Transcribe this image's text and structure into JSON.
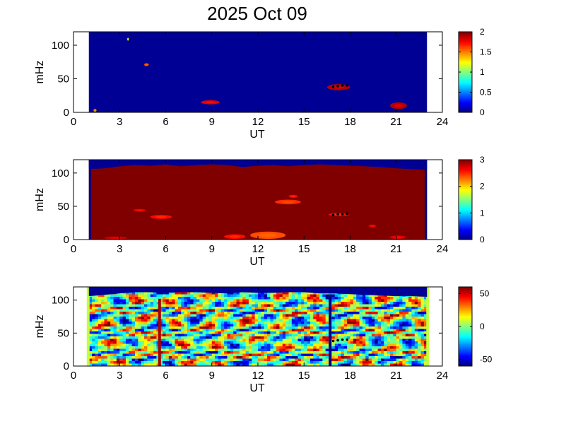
{
  "title": "2025 Oct 09",
  "colors": {
    "cmap": "jet",
    "background": "#ffffff",
    "axis": "#000000"
  },
  "chart_data": [
    {
      "type": "heatmap",
      "xlabel": "UT",
      "ylabel": "mHz",
      "xlim": [
        0,
        24
      ],
      "ylim": [
        0,
        120
      ],
      "xticks": [
        "0",
        "3",
        "6",
        "9",
        "12",
        "15",
        "18",
        "21",
        "24"
      ],
      "yticks": [
        "0",
        "50",
        "100"
      ],
      "data_extent_ut": [
        1,
        23
      ],
      "clim": [
        0,
        2
      ],
      "colorbar_ticks": [
        "0",
        "0.5",
        "1",
        "1.5",
        "2"
      ],
      "base_value": 0.04,
      "features": [
        {
          "ut": [
            8.3,
            9.5
          ],
          "mhz": [
            12,
            18
          ],
          "value": 1.8
        },
        {
          "ut": [
            4.6,
            4.9
          ],
          "mhz": [
            70,
            72
          ],
          "value": 1.6
        },
        {
          "ut": [
            16.5,
            18.0
          ],
          "mhz": [
            33,
            42
          ],
          "value": 1.9
        },
        {
          "ut": [
            20.6,
            21.7
          ],
          "mhz": [
            5,
            15
          ],
          "value": 1.9
        },
        {
          "ut": [
            1.3,
            1.5
          ],
          "mhz": [
            1,
            5
          ],
          "value": 1.5
        },
        {
          "ut": [
            3.5,
            3.6
          ],
          "mhz": [
            108,
            110
          ],
          "value": 1.2
        }
      ],
      "marker_points": [
        [
          16.9,
          38
        ],
        [
          17.2,
          39
        ],
        [
          17.5,
          40
        ],
        [
          17.8,
          40
        ]
      ]
    },
    {
      "type": "heatmap",
      "xlabel": "UT",
      "ylabel": "mHz",
      "xlim": [
        0,
        24
      ],
      "ylim": [
        0,
        120
      ],
      "xticks": [
        "0",
        "3",
        "6",
        "9",
        "12",
        "15",
        "18",
        "21",
        "24"
      ],
      "yticks": [
        "0",
        "50",
        "100"
      ],
      "data_extent_ut": [
        1,
        23
      ],
      "clim": [
        0,
        3
      ],
      "colorbar_ticks": [
        "0",
        "1",
        "2",
        "3"
      ],
      "base_value": 3,
      "top_edge_mhz": [
        106,
        107,
        110,
        112,
        111,
        113,
        110,
        112,
        113,
        112,
        109,
        111,
        112,
        110,
        112,
        113,
        112,
        111,
        110,
        109,
        107,
        106,
        105
      ],
      "features": [
        {
          "ut": [
            11.5,
            13.8
          ],
          "mhz": [
            1,
            12
          ],
          "value": 2.4
        },
        {
          "ut": [
            9.8,
            11.2
          ],
          "mhz": [
            1,
            8
          ],
          "value": 2.6
        },
        {
          "ut": [
            5.0,
            6.4
          ],
          "mhz": [
            31,
            37
          ],
          "value": 2.6
        },
        {
          "ut": [
            3.9,
            4.7
          ],
          "mhz": [
            42,
            46
          ],
          "value": 2.7
        },
        {
          "ut": [
            13.1,
            14.8
          ],
          "mhz": [
            53,
            60
          ],
          "value": 2.5
        },
        {
          "ut": [
            14.0,
            14.6
          ],
          "mhz": [
            63,
            67
          ],
          "value": 2.6
        },
        {
          "ut": [
            16.6,
            17.9
          ],
          "mhz": [
            35,
            40
          ],
          "value": 2.6
        },
        {
          "ut": [
            19.2,
            19.7
          ],
          "mhz": [
            19,
            22
          ],
          "value": 2.7
        },
        {
          "ut": [
            20.6,
            21.6
          ],
          "mhz": [
            1,
            6
          ],
          "value": 2.7
        },
        {
          "ut": [
            2.0,
            3.5
          ],
          "mhz": [
            1,
            4
          ],
          "value": 2.8
        }
      ],
      "marker_points": [
        [
          16.9,
          37
        ],
        [
          17.2,
          38
        ],
        [
          17.5,
          38
        ],
        [
          17.8,
          39
        ]
      ]
    },
    {
      "type": "heatmap",
      "xlabel": "UT",
      "ylabel": "mHz",
      "xlim": [
        0,
        24
      ],
      "ylim": [
        0,
        120
      ],
      "xticks": [
        "0",
        "3",
        "6",
        "9",
        "12",
        "15",
        "18",
        "21",
        "24"
      ],
      "yticks": [
        "0",
        "50",
        "100"
      ],
      "data_extent_ut": [
        1,
        23
      ],
      "clim": [
        -60,
        60
      ],
      "colorbar_ticks": [
        "-50",
        "0",
        "50"
      ],
      "noise_amplitude": 55,
      "top_edge_mhz": [
        106,
        108,
        110,
        112,
        112,
        111,
        112,
        112,
        111,
        110,
        112,
        111,
        111,
        112,
        112,
        110,
        110,
        109,
        108,
        107,
        106,
        106,
        105
      ],
      "vertical_lines": [
        {
          "ut": 5.6,
          "mhz": [
            0,
            102
          ],
          "value": 55
        },
        {
          "ut": 16.7,
          "mhz": [
            0,
            102
          ],
          "value": -60
        }
      ],
      "marker_points": [
        [
          16.9,
          38
        ],
        [
          17.2,
          39
        ],
        [
          17.5,
          40
        ],
        [
          17.8,
          40
        ]
      ]
    }
  ]
}
